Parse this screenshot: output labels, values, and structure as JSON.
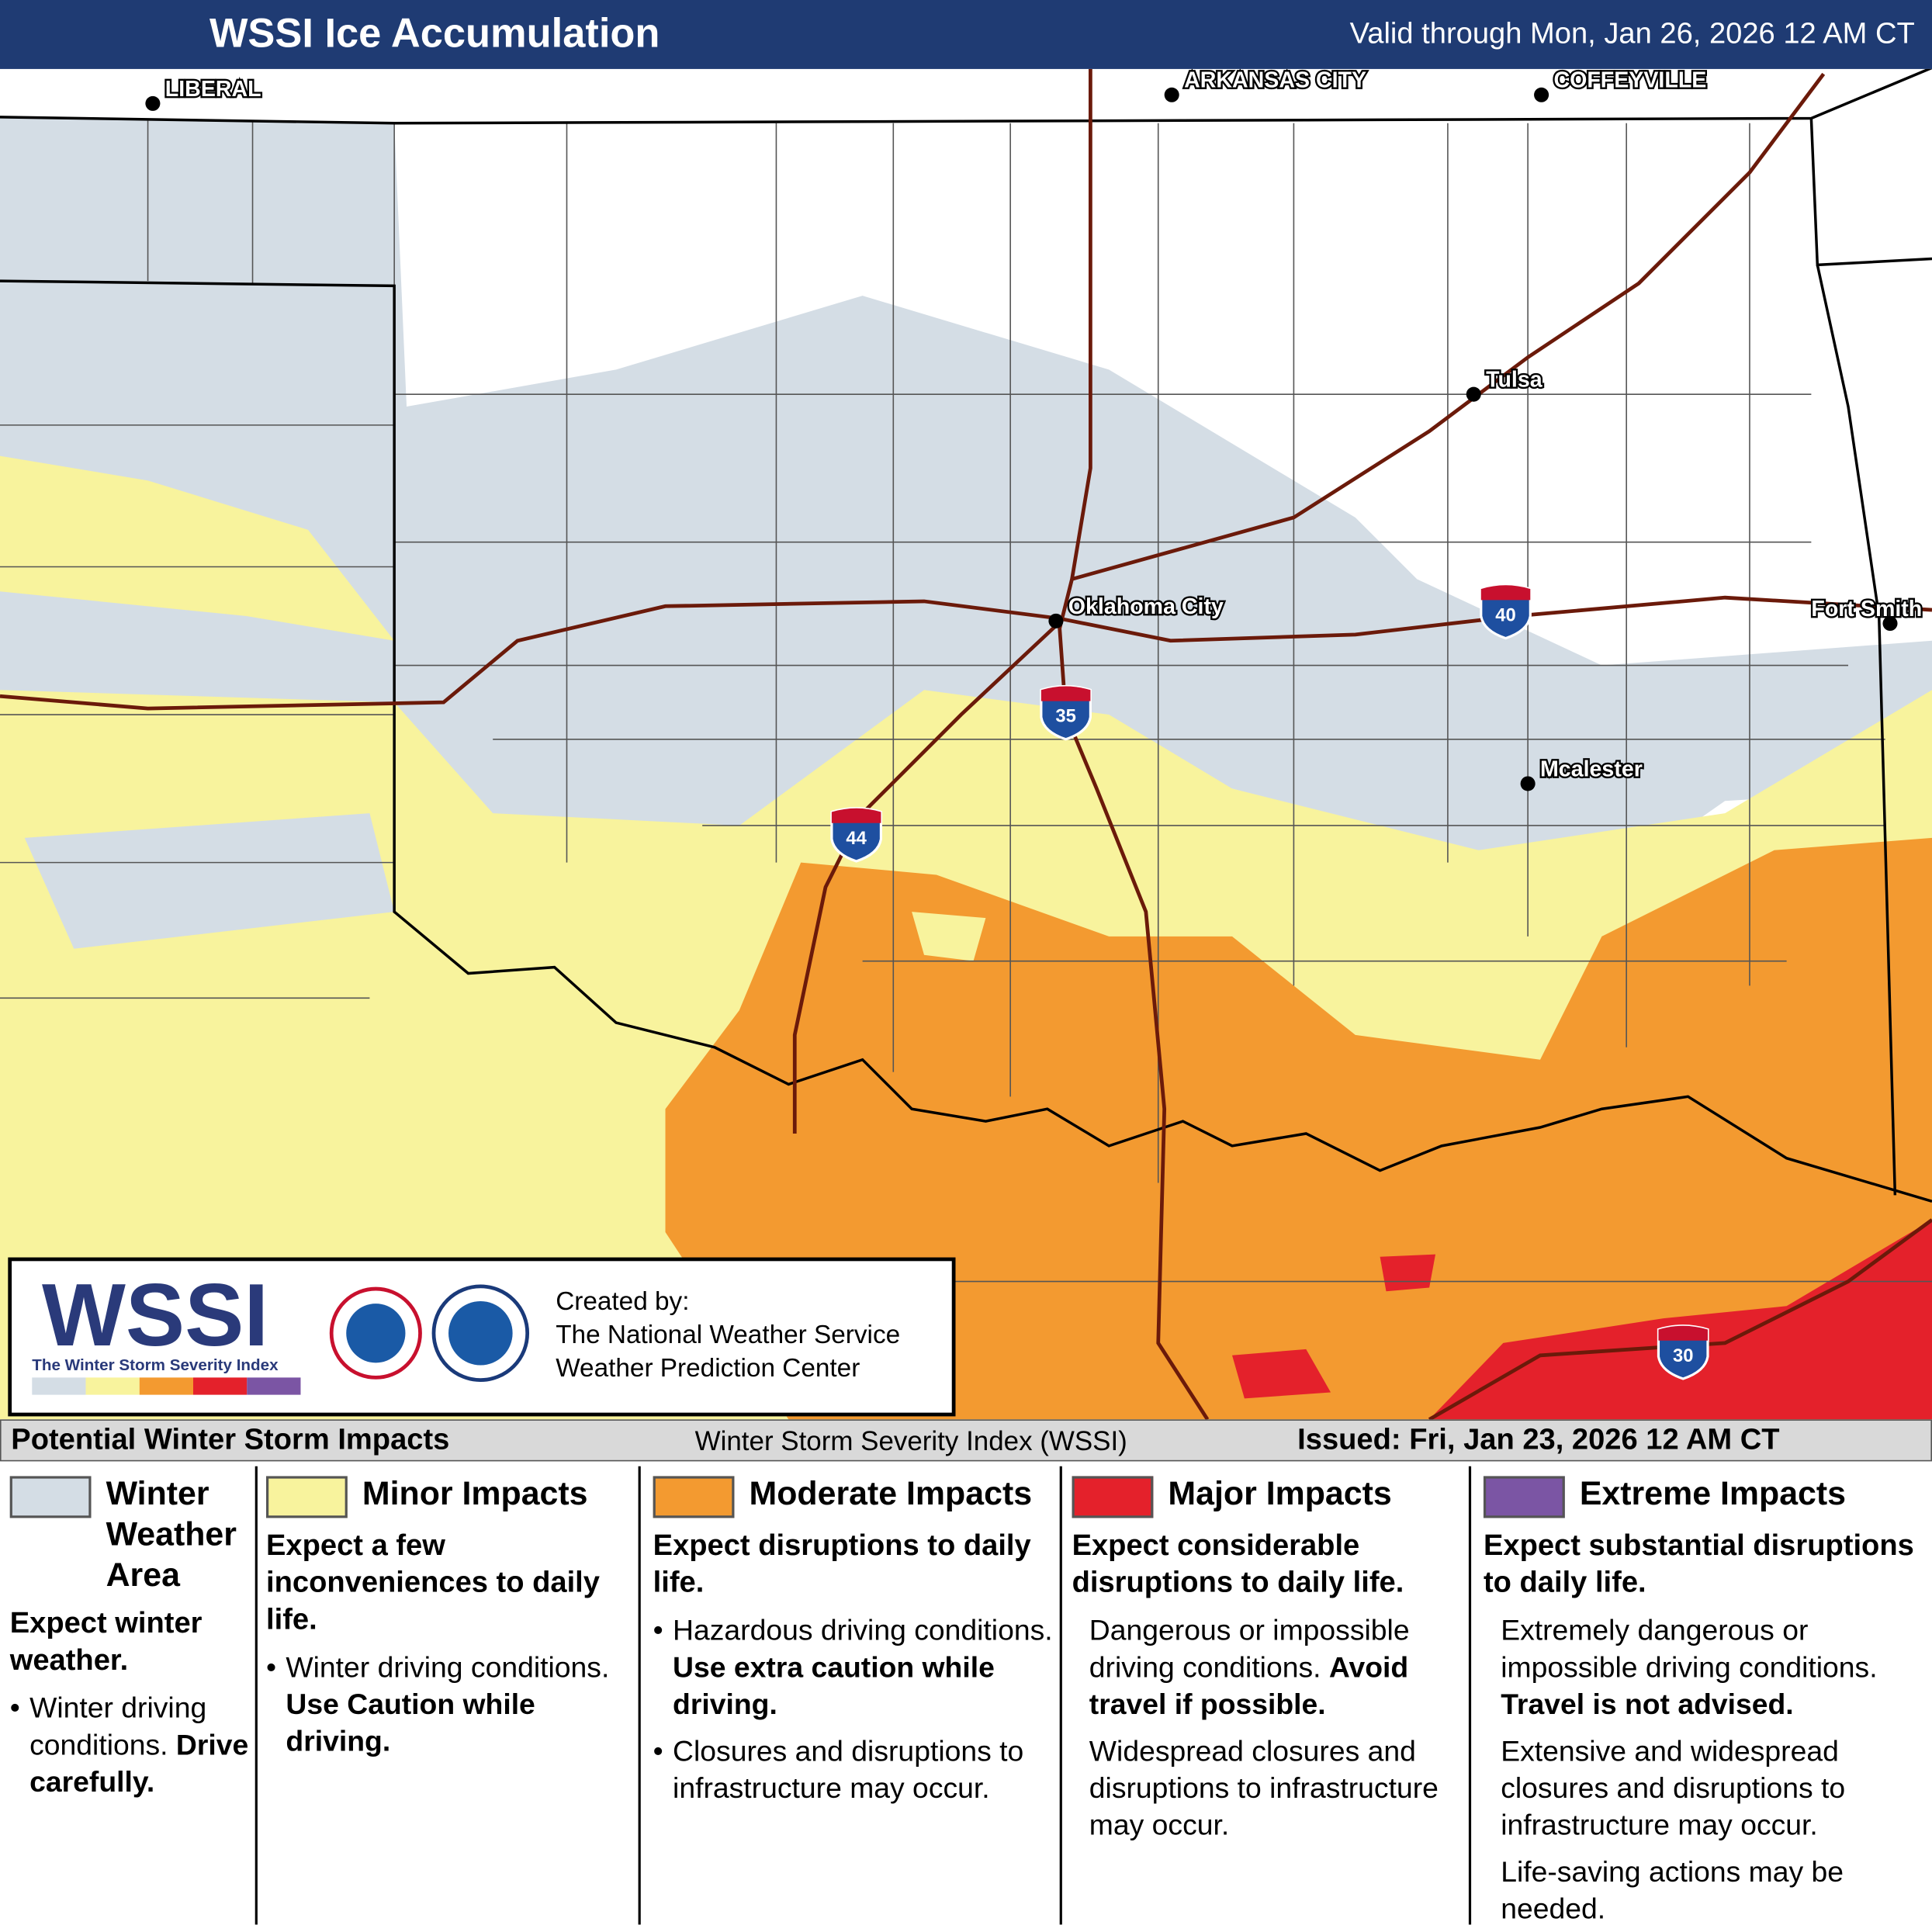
{
  "header": {
    "title": "WSSI Ice Accumulation",
    "valid": "Valid through Mon, Jan 26, 2026 12 AM CT"
  },
  "map": {
    "cities": [
      {
        "label": "LIBERAL"
      },
      {
        "label": "ARKANSAS CITY"
      },
      {
        "label": "COFFEYVILLE"
      },
      {
        "label": "Tulsa"
      },
      {
        "label": "Oklahoma City"
      },
      {
        "label": "Fort Smith"
      },
      {
        "label": "Mcalester"
      }
    ],
    "interstates": [
      "40",
      "35",
      "44",
      "30"
    ]
  },
  "logo": {
    "wssi": "WSSI",
    "tagline": "The Winter Storm Severity Index",
    "created": "Created by:",
    "org1": "The National Weather Service",
    "org2": "Weather Prediction Center"
  },
  "legend_bar": {
    "title": "Potential Winter Storm Impacts",
    "subtitle": "Winter Storm Severity Index (WSSI)",
    "issued": "Issued: Fri, Jan 23, 2026 12 AM CT"
  },
  "categories": [
    {
      "name": "Winter Weather Area",
      "color": "#d4dde5",
      "bullets": true,
      "summary": "Expect winter weather.",
      "items": [
        {
          "text": "Winter driving conditions.",
          "bold": "Drive carefully."
        }
      ]
    },
    {
      "name": "Minor Impacts",
      "color": "#f8f39d",
      "bullets": true,
      "summary": "Expect a few inconveniences to daily life.",
      "items": [
        {
          "text": "Winter driving conditions.",
          "bold": "Use Caution while driving."
        }
      ]
    },
    {
      "name": "Moderate Impacts",
      "color": "#f39a30",
      "bullets": true,
      "summary": "Expect disruptions to daily life.",
      "items": [
        {
          "text": "Hazardous driving conditions.",
          "bold": "Use extra caution while driving."
        },
        {
          "text": "Closures and disruptions to infrastructure may occur."
        }
      ]
    },
    {
      "name": "Major Impacts",
      "color": "#e4212b",
      "bullets": false,
      "summary": "Expect considerable disruptions to daily life.",
      "items": [
        {
          "text": "Dangerous or impossible driving conditions.",
          "bold": "Avoid travel if possible."
        },
        {
          "text": "Widespread closures and disruptions to infrastructure may occur."
        }
      ]
    },
    {
      "name": "Extreme Impacts",
      "color": "#7b55a4",
      "bullets": false,
      "summary": "Expect substantial disruptions to daily life.",
      "items": [
        {
          "text": "Extremely dangerous or impossible driving conditions.",
          "bold": "Travel is not advised."
        },
        {
          "text": "Extensive and widespread closures and disruptions to infrastructure may occur."
        },
        {
          "text": "Life-saving actions may be needed."
        }
      ]
    }
  ]
}
